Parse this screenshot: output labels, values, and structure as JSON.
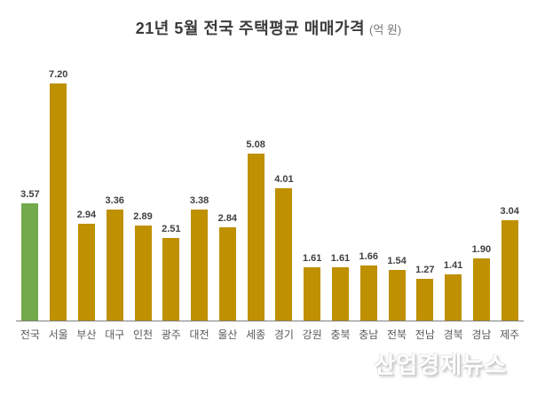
{
  "title": {
    "main": "21년 5월 전국 주택평균 매매가격",
    "unit": "(억 원)"
  },
  "watermark": "산업경제뉴스",
  "chart_data": {
    "type": "bar",
    "title": "21년 5월 전국 주택평균 매매가격 (억 원)",
    "unit": "억 원",
    "categories": [
      "전국",
      "서울",
      "부산",
      "대구",
      "인천",
      "광주",
      "대전",
      "울산",
      "세종",
      "경기",
      "강원",
      "충북",
      "충남",
      "전북",
      "전남",
      "경북",
      "경남",
      "제주"
    ],
    "values": [
      3.57,
      7.2,
      2.94,
      3.36,
      2.89,
      2.51,
      3.38,
      2.84,
      5.08,
      4.01,
      1.61,
      1.61,
      1.66,
      1.54,
      1.27,
      1.41,
      1.9,
      3.04
    ],
    "highlight_index": 0,
    "bar_colors": {
      "default": "#BF9000",
      "highlight": "#74A94C"
    },
    "data_labels": true,
    "value_label_decimals": 2,
    "ylim": [
      0,
      7.6
    ],
    "grid": false,
    "legend": false,
    "baseline_color": "#7f7f7f"
  }
}
